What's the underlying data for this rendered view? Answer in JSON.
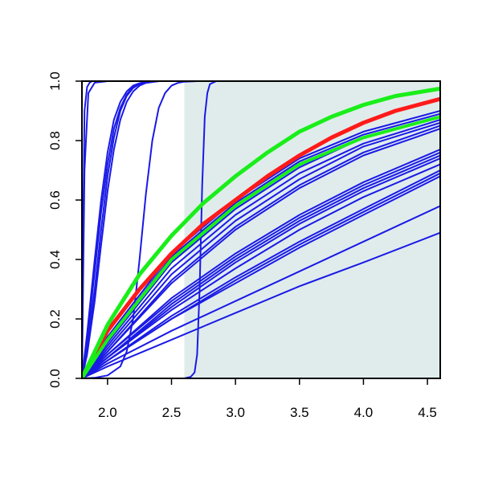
{
  "chart_data": {
    "type": "line",
    "title": "",
    "xlabel": "",
    "ylabel": "",
    "xlim": [
      1.8,
      4.6
    ],
    "ylim": [
      0.0,
      1.0
    ],
    "xticks": [
      2.0,
      2.5,
      3.0,
      3.5,
      4.0,
      4.5
    ],
    "xtick_labels": [
      "2.0",
      "2.5",
      "3.0",
      "3.5",
      "4.0",
      "4.5"
    ],
    "yticks": [
      0.0,
      0.2,
      0.4,
      0.6,
      0.8,
      1.0
    ],
    "ytick_labels": [
      "0.0",
      "0.2",
      "0.4",
      "0.6",
      "0.8",
      "1.0"
    ],
    "grid": false,
    "legend": "none",
    "shaded_region": {
      "x": [
        2.6,
        4.6
      ],
      "color": "#e0ecec"
    },
    "colors": {
      "blue": "#1a1ae6",
      "red": "#ff1a1a",
      "green": "#1aee1a",
      "axis": "#000000"
    },
    "series": [
      {
        "color": "blue",
        "width": 2,
        "x": [
          1.8,
          1.81,
          1.82,
          1.84,
          1.86,
          1.88,
          1.9,
          2.0
        ],
        "y": [
          0.0,
          0.5,
          0.9,
          0.98,
          0.995,
          1.0,
          1.0,
          1.0
        ]
      },
      {
        "color": "blue",
        "width": 2,
        "x": [
          1.8,
          1.82,
          1.85,
          1.9,
          2.0
        ],
        "y": [
          0.0,
          0.7,
          0.96,
          0.995,
          1.0
        ]
      },
      {
        "color": "blue",
        "width": 2,
        "x": [
          1.8,
          1.84,
          1.9,
          1.95,
          2.0,
          2.05,
          2.1,
          2.15,
          2.2,
          2.25,
          2.3,
          2.4
        ],
        "y": [
          0.0,
          0.15,
          0.4,
          0.6,
          0.76,
          0.87,
          0.93,
          0.965,
          0.985,
          0.993,
          0.998,
          1.0
        ]
      },
      {
        "color": "blue",
        "width": 2,
        "x": [
          1.8,
          1.84,
          1.9,
          1.95,
          2.0,
          2.05,
          2.1,
          2.15,
          2.2,
          2.25,
          2.3,
          2.4
        ],
        "y": [
          0.0,
          0.12,
          0.36,
          0.56,
          0.72,
          0.84,
          0.91,
          0.955,
          0.98,
          0.99,
          0.996,
          1.0
        ]
      },
      {
        "color": "blue",
        "width": 2,
        "x": [
          1.8,
          1.84,
          1.9,
          1.95,
          2.0,
          2.05,
          2.1,
          2.15,
          2.2,
          2.25,
          2.3,
          2.4
        ],
        "y": [
          0.0,
          0.1,
          0.3,
          0.5,
          0.68,
          0.81,
          0.9,
          0.95,
          0.977,
          0.99,
          0.996,
          1.0
        ]
      },
      {
        "color": "blue",
        "width": 2,
        "x": [
          1.8,
          1.84,
          1.9,
          1.95,
          2.0,
          2.05,
          2.1,
          2.15,
          2.2,
          2.25,
          2.3,
          2.4
        ],
        "y": [
          0.0,
          0.08,
          0.26,
          0.45,
          0.63,
          0.77,
          0.87,
          0.93,
          0.965,
          0.985,
          0.994,
          1.0
        ]
      },
      {
        "color": "blue",
        "width": 2,
        "x": [
          1.8,
          1.9,
          2.0,
          2.1,
          2.15,
          2.2,
          2.25,
          2.3,
          2.35,
          2.4,
          2.45,
          2.5,
          2.55,
          2.6,
          2.7
        ],
        "y": [
          0.0,
          0.002,
          0.01,
          0.04,
          0.09,
          0.2,
          0.4,
          0.62,
          0.8,
          0.91,
          0.96,
          0.985,
          0.994,
          0.998,
          1.0
        ]
      },
      {
        "color": "blue",
        "width": 2,
        "x": [
          1.8,
          2.6,
          2.65,
          2.68,
          2.7,
          2.72,
          2.74,
          2.76,
          2.78,
          2.8,
          2.85,
          4.6
        ],
        "y": [
          0.0,
          0.0,
          0.005,
          0.02,
          0.08,
          0.3,
          0.65,
          0.88,
          0.96,
          0.99,
          1.0,
          1.0
        ]
      },
      {
        "color": "blue",
        "width": 2,
        "x": [
          1.8,
          2.0,
          2.5,
          3.0,
          3.5,
          4.0,
          4.6
        ],
        "y": [
          0.0,
          0.14,
          0.42,
          0.6,
          0.74,
          0.83,
          0.9
        ]
      },
      {
        "color": "blue",
        "width": 2,
        "x": [
          1.8,
          2.0,
          2.5,
          3.0,
          3.5,
          4.0,
          4.6
        ],
        "y": [
          0.0,
          0.13,
          0.41,
          0.59,
          0.73,
          0.82,
          0.89
        ]
      },
      {
        "color": "blue",
        "width": 2,
        "x": [
          1.8,
          2.0,
          2.5,
          3.0,
          3.5,
          4.0,
          4.6
        ],
        "y": [
          0.0,
          0.12,
          0.39,
          0.57,
          0.71,
          0.81,
          0.88
        ]
      },
      {
        "color": "blue",
        "width": 2,
        "x": [
          1.8,
          2.0,
          2.5,
          3.0,
          3.5,
          4.0,
          4.6
        ],
        "y": [
          0.0,
          0.11,
          0.37,
          0.55,
          0.69,
          0.79,
          0.87
        ]
      },
      {
        "color": "blue",
        "width": 2,
        "x": [
          1.8,
          2.0,
          2.5,
          3.0,
          3.5,
          4.0,
          4.6
        ],
        "y": [
          0.0,
          0.1,
          0.35,
          0.53,
          0.67,
          0.78,
          0.86
        ]
      },
      {
        "color": "blue",
        "width": 2,
        "x": [
          1.8,
          2.0,
          2.5,
          3.0,
          3.5,
          4.0,
          4.6
        ],
        "y": [
          0.0,
          0.09,
          0.33,
          0.51,
          0.65,
          0.76,
          0.85
        ]
      },
      {
        "color": "blue",
        "width": 2,
        "x": [
          1.8,
          2.0,
          2.5,
          3.0,
          3.5,
          4.0,
          4.6
        ],
        "y": [
          0.0,
          0.09,
          0.32,
          0.5,
          0.64,
          0.75,
          0.84
        ]
      },
      {
        "color": "blue",
        "width": 2,
        "x": [
          1.8,
          2.0,
          2.5,
          3.0,
          3.5,
          4.0,
          4.6
        ],
        "y": [
          0.0,
          0.08,
          0.27,
          0.42,
          0.55,
          0.66,
          0.77
        ]
      },
      {
        "color": "blue",
        "width": 2,
        "x": [
          1.8,
          2.0,
          2.5,
          3.0,
          3.5,
          4.0,
          4.6
        ],
        "y": [
          0.0,
          0.08,
          0.26,
          0.41,
          0.54,
          0.65,
          0.76
        ]
      },
      {
        "color": "blue",
        "width": 2,
        "x": [
          1.8,
          2.0,
          2.5,
          3.0,
          3.5,
          4.0,
          4.6
        ],
        "y": [
          0.0,
          0.07,
          0.25,
          0.4,
          0.53,
          0.64,
          0.75
        ]
      },
      {
        "color": "blue",
        "width": 2,
        "x": [
          1.8,
          2.0,
          2.5,
          3.0,
          3.5,
          4.0,
          4.6
        ],
        "y": [
          0.0,
          0.07,
          0.24,
          0.39,
          0.52,
          0.63,
          0.74
        ]
      },
      {
        "color": "blue",
        "width": 2,
        "x": [
          1.8,
          2.0,
          2.5,
          3.0,
          3.5,
          4.0,
          4.6
        ],
        "y": [
          0.0,
          0.07,
          0.23,
          0.37,
          0.5,
          0.61,
          0.72
        ]
      },
      {
        "color": "blue",
        "width": 2,
        "x": [
          1.8,
          2.0,
          2.5,
          3.0,
          3.5,
          4.0,
          4.6
        ],
        "y": [
          0.0,
          0.06,
          0.21,
          0.34,
          0.46,
          0.57,
          0.7
        ]
      },
      {
        "color": "blue",
        "width": 2,
        "x": [
          1.8,
          2.0,
          2.5,
          3.0,
          3.5,
          4.0,
          4.6
        ],
        "y": [
          0.0,
          0.06,
          0.2,
          0.33,
          0.45,
          0.56,
          0.69
        ]
      },
      {
        "color": "blue",
        "width": 2,
        "x": [
          1.8,
          2.0,
          2.5,
          3.0,
          3.5,
          4.0,
          4.6
        ],
        "y": [
          0.0,
          0.06,
          0.2,
          0.32,
          0.44,
          0.55,
          0.68
        ]
      },
      {
        "color": "blue",
        "width": 2,
        "x": [
          1.8,
          2.0,
          2.5,
          3.0,
          3.5,
          4.0,
          4.6
        ],
        "y": [
          0.0,
          0.05,
          0.16,
          0.26,
          0.36,
          0.46,
          0.58
        ]
      },
      {
        "color": "blue",
        "width": 2,
        "x": [
          1.8,
          2.0,
          2.5,
          3.0,
          3.5,
          4.0,
          4.6
        ],
        "y": [
          0.0,
          0.04,
          0.13,
          0.22,
          0.31,
          0.39,
          0.49
        ]
      },
      {
        "color": "red",
        "width": 5,
        "x": [
          1.8,
          2.0,
          2.25,
          2.5,
          2.75,
          3.0,
          3.25,
          3.5,
          3.75,
          4.0,
          4.25,
          4.6
        ],
        "y": [
          0.0,
          0.16,
          0.3,
          0.42,
          0.52,
          0.6,
          0.68,
          0.75,
          0.81,
          0.86,
          0.9,
          0.94
        ]
      },
      {
        "color": "green",
        "width": 5,
        "x": [
          1.8,
          2.0,
          2.25,
          2.5,
          2.75,
          3.0,
          3.25,
          3.5,
          3.75,
          4.0,
          4.25,
          4.6
        ],
        "y": [
          0.0,
          0.18,
          0.35,
          0.48,
          0.59,
          0.68,
          0.76,
          0.83,
          0.88,
          0.92,
          0.95,
          0.975
        ]
      },
      {
        "color": "green",
        "width": 4,
        "x": [
          1.8,
          2.0,
          2.5,
          3.0,
          3.5,
          4.0,
          4.6
        ],
        "y": [
          0.0,
          0.13,
          0.4,
          0.58,
          0.72,
          0.81,
          0.88
        ]
      }
    ]
  }
}
